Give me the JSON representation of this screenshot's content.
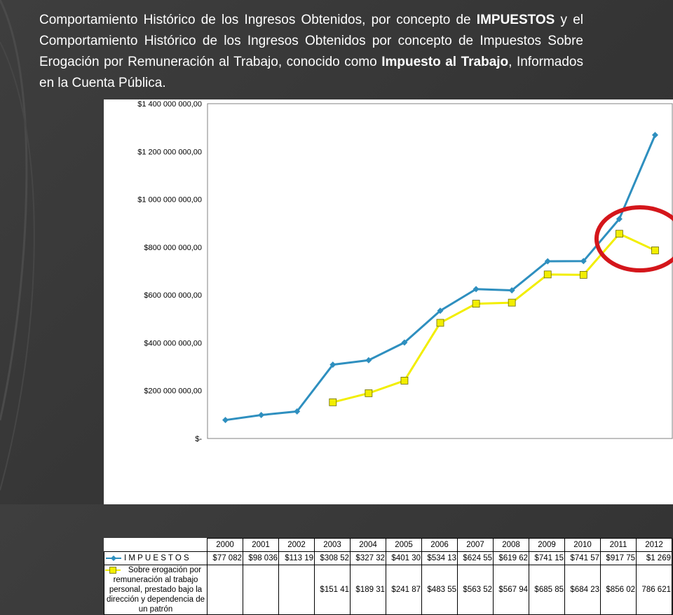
{
  "title": {
    "p1": "Comportamiento Histórico de los Ingresos Obtenidos, por concepto de ",
    "b1": "IMPUESTOS",
    "p2": " y el Comportamiento Histórico de los Ingresos Obtenidos por concepto de Impuestos Sobre Erogación por Remuneración al Trabajo, conocido como ",
    "b2": "Impuesto al Trabajo",
    "p3": ", Informados en la Cuenta Pública."
  },
  "colors": {
    "impuestos": "#2e8fbf",
    "erogacion": "#f2ee00",
    "highlight_circle": "#d4161b"
  },
  "chart_data": {
    "type": "line",
    "x": [
      "2000",
      "2001",
      "2002",
      "2003",
      "2004",
      "2005",
      "2006",
      "2007",
      "2008",
      "2009",
      "2010",
      "2011",
      "2012"
    ],
    "ylim": [
      0,
      1400000000
    ],
    "yticks": [
      0,
      200000000,
      400000000,
      600000000,
      800000000,
      1000000000,
      1200000000,
      1400000000
    ],
    "ytick_labels": [
      "$-",
      "$200 000 000,00",
      "$400 000 000,00",
      "$600 000 000,00",
      "$800 000 000,00",
      "$1 000 000 000,00",
      "$1 200 000 000,00",
      "$1 400 000 000,00"
    ],
    "grid": "none",
    "legend": "data table below chart",
    "series": [
      {
        "name": "I M P U E S T O S",
        "marker": "diamond",
        "values": [
          77082000,
          98036000,
          113190000,
          308520000,
          327320000,
          401300000,
          534130000,
          624550000,
          619620000,
          741150000,
          741570000,
          917750000,
          1269000000
        ],
        "table_labels": [
          "$77 082",
          "$98 036",
          "$113 19",
          "$308 52",
          "$327 32",
          "$401 30",
          "$534 13",
          "$624 55",
          "$619 62",
          "$741 15",
          "$741 57",
          "$917 75",
          "$1 269"
        ]
      },
      {
        "name": "Sobre erogación por remuneración al trabajo personal, prestado bajo la dirección y dependencia de un patrón",
        "marker": "square",
        "values": [
          null,
          null,
          null,
          151410000,
          189310000,
          241870000,
          483550000,
          563520000,
          567940000,
          685850000,
          684230000,
          856020000,
          786621000
        ],
        "table_labels": [
          "",
          "",
          "",
          "$151 41",
          "$189 31",
          "$241 87",
          "$483 55",
          "$563 52",
          "$567 94",
          "$685 85",
          "$684 23",
          "$856 02",
          "786 621"
        ]
      }
    ],
    "annotations": [
      {
        "type": "circle",
        "around": "2011-2012 values",
        "color": "#d4161b"
      }
    ]
  }
}
